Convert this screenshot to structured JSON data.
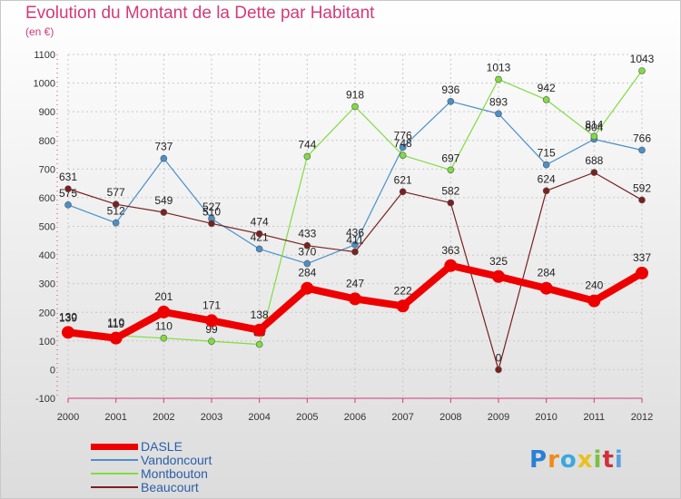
{
  "title": "Evolution du Montant de la Dette par Habitant",
  "subtitle": "(en €)",
  "logo": {
    "text": "Proxiti",
    "colors": [
      "#2a7fd4",
      "#f08a1c",
      "#3aa8e0",
      "#e8c21a",
      "#7ac142",
      "#d0303a",
      "#5aa0e0"
    ]
  },
  "chart_data": {
    "type": "line",
    "title": "Evolution du Montant de la Dette par Habitant",
    "ylabel": "(en €)",
    "xlabel": "",
    "x": [
      "2000",
      "2001",
      "2002",
      "2003",
      "2004",
      "2005",
      "2006",
      "2007",
      "2008",
      "2009",
      "2010",
      "2011",
      "2012"
    ],
    "ylim": [
      -100,
      1100
    ],
    "yticks": [
      -100,
      0,
      100,
      200,
      300,
      400,
      500,
      600,
      700,
      800,
      900,
      1000,
      1100
    ],
    "grid": true,
    "legend_position": "bottom-left",
    "series": [
      {
        "name": "DASLE",
        "color": "#ee0000",
        "values": [
          130,
          110,
          201,
          171,
          138,
          284,
          247,
          222,
          363,
          325,
          284,
          240,
          337
        ],
        "labels": [
          "130",
          "110",
          "201",
          "171",
          "138",
          "284",
          "247",
          "222",
          "363",
          "325",
          "284",
          "240",
          "337"
        ]
      },
      {
        "name": "Vandoncourt",
        "color": "#4a90c8",
        "values": [
          575,
          512,
          737,
          527,
          421,
          370,
          436,
          776,
          936,
          893,
          715,
          804,
          766
        ],
        "labels": [
          "575",
          "512",
          "737",
          "527",
          "421",
          "370",
          "436",
          "776",
          "936",
          "893",
          "715",
          "804",
          "766"
        ]
      },
      {
        "name": "Montbouton",
        "color": "#80dc40",
        "values": [
          139,
          119,
          110,
          99,
          88,
          744,
          918,
          748,
          697,
          1013,
          942,
          814,
          1043
        ],
        "labels": [
          "139",
          "119",
          "110",
          "99",
          "88",
          "744",
          "918",
          "748",
          "697",
          "1013",
          "942",
          "814",
          "1043"
        ]
      },
      {
        "name": "Beaucourt",
        "color": "#7a2020",
        "values": [
          631,
          577,
          549,
          510,
          474,
          433,
          411,
          621,
          582,
          0,
          624,
          688,
          592
        ],
        "labels": [
          "631",
          "577",
          "549",
          "510",
          "474",
          "433",
          "411",
          "621",
          "582",
          "0",
          "624",
          "688",
          "592"
        ]
      }
    ]
  }
}
